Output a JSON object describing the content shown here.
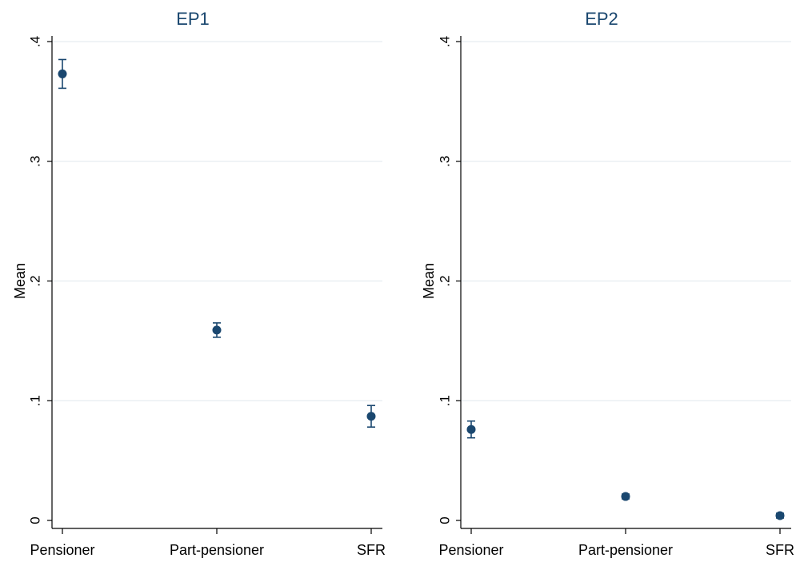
{
  "colors": {
    "marker": "#1a476f",
    "grid": "#e6ecf0",
    "axis": "#000000",
    "title": "#1a476f"
  },
  "chart_data": [
    {
      "type": "scatter",
      "title": "EP1",
      "ylabel": "Mean",
      "xlabel": "",
      "categories": [
        "Pensioner",
        "Part-pensioner",
        "SFR"
      ],
      "ylim": [
        0,
        0.4
      ],
      "yticks": [
        0,
        0.1,
        0.2,
        0.3,
        0.4
      ],
      "ytick_labels": [
        "0",
        ".1",
        ".2",
        ".3",
        ".4"
      ],
      "grid": true,
      "series": [
        {
          "values": [
            0.373,
            0.159,
            0.087
          ],
          "lower": [
            0.361,
            0.153,
            0.078
          ],
          "upper": [
            0.385,
            0.165,
            0.096
          ]
        }
      ]
    },
    {
      "type": "scatter",
      "title": "EP2",
      "ylabel": "Mean",
      "xlabel": "",
      "categories": [
        "Pensioner",
        "Part-pensioner",
        "SFR"
      ],
      "ylim": [
        0,
        0.4
      ],
      "yticks": [
        0,
        0.1,
        0.2,
        0.3,
        0.4
      ],
      "ytick_labels": [
        "0",
        ".1",
        ".2",
        ".3",
        ".4"
      ],
      "grid": true,
      "series": [
        {
          "values": [
            0.076,
            0.02,
            0.004
          ],
          "lower": [
            0.069,
            0.018,
            0.002
          ],
          "upper": [
            0.083,
            0.022,
            0.006
          ]
        }
      ]
    }
  ]
}
